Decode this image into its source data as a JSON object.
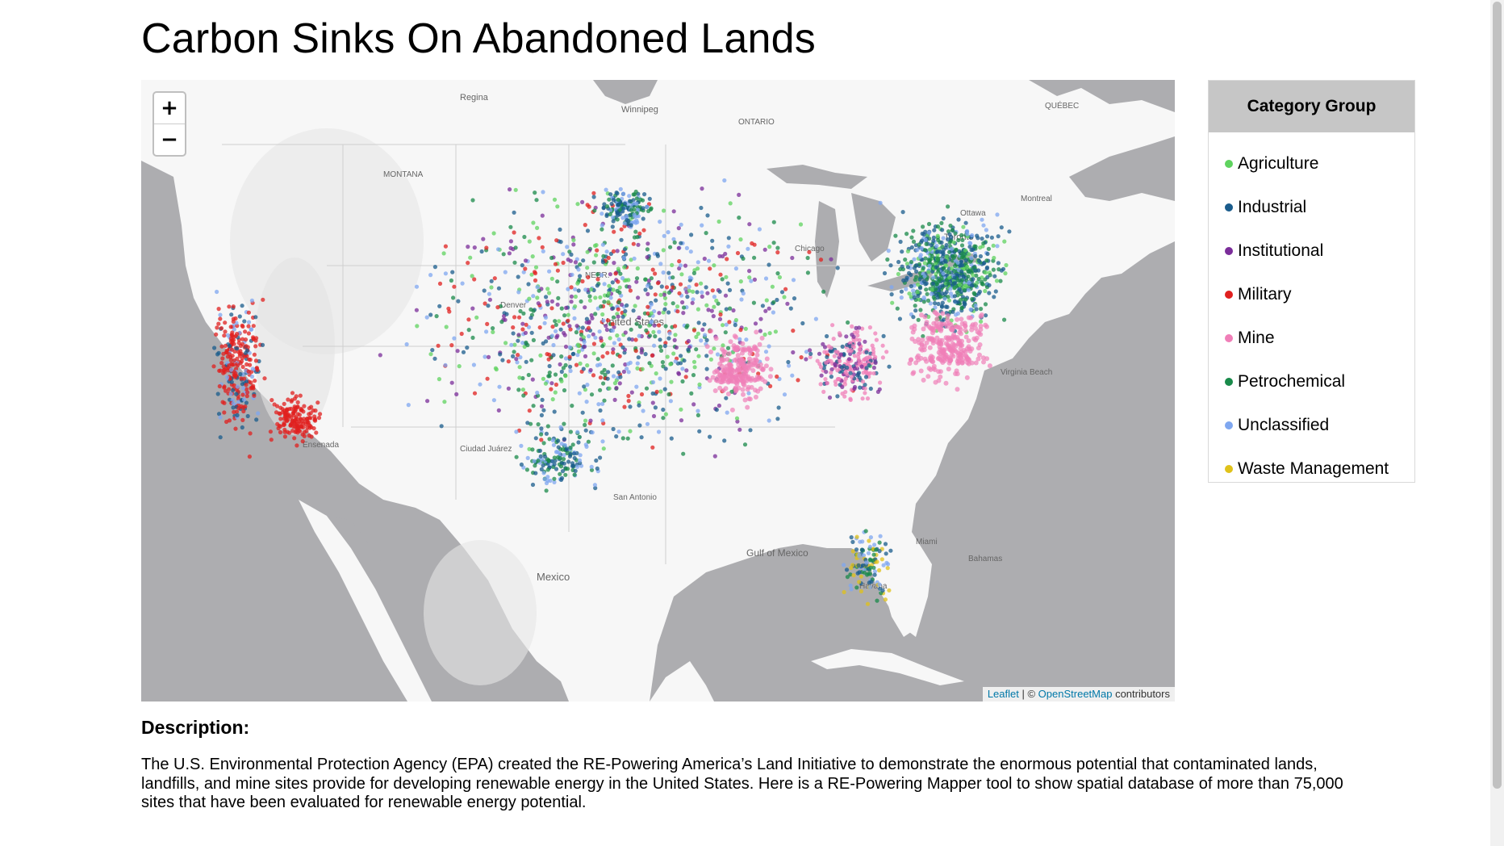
{
  "page": {
    "title": "Carbon Sinks On Abandoned Lands"
  },
  "map": {
    "zoom_in": "+",
    "zoom_out": "−",
    "attribution": {
      "leaflet": "Leaflet",
      "separator": " | © ",
      "osm": "OpenStreetMap",
      "suffix": " contributors"
    },
    "labels": {
      "regina": "Regina",
      "winnipeg": "Winnipeg",
      "ontario": "ONTARIO",
      "quebec": "QUÉBEC",
      "montreal": "Montreal",
      "ottawa": "Ottawa",
      "toronto": "Toronto",
      "montana": "MONTANA",
      "nebr": "NEBR.",
      "united_states": "United States",
      "gulf": "Gulf of Mexico",
      "mexico": "Mexico",
      "havana": "Havana",
      "bahamas": "Bahamas",
      "miami": "Miami",
      "chicago": "Chicago",
      "denver": "Denver",
      "virginia_beach": "Virginia Beach",
      "ciudad_juarez": "Ciudad Juárez",
      "san_antonio": "San Antonio",
      "ensenada": "Ensenada"
    },
    "colors": {
      "water": "#adadb0",
      "land": "#f7f7f7"
    }
  },
  "legend": {
    "title": "Category Group",
    "items": [
      {
        "label": "Agriculture",
        "color": "#5fd35f"
      },
      {
        "label": "Industrial",
        "color": "#1a5c8c"
      },
      {
        "label": "Institutional",
        "color": "#7b2d9a"
      },
      {
        "label": "Military",
        "color": "#e0201f"
      },
      {
        "label": "Mine",
        "color": "#f07fb8"
      },
      {
        "label": "Petrochemical",
        "color": "#198a4a"
      },
      {
        "label": "Unclassified",
        "color": "#7fa7f0"
      },
      {
        "label": "Waste Management",
        "color": "#e0c21a"
      }
    ]
  },
  "description": {
    "heading": "Description:",
    "text": "The U.S. Environmental Protection Agency (EPA) created the RE-Powering America’s Land Initiative to demonstrate the enormous potential that contaminated lands, landfills, and mine sites provide for developing renewable energy in the United States. Here is a RE-Powering Mapper tool to show spatial database of more than 75,000 sites that have been evaluated for renewable energy potential."
  }
}
